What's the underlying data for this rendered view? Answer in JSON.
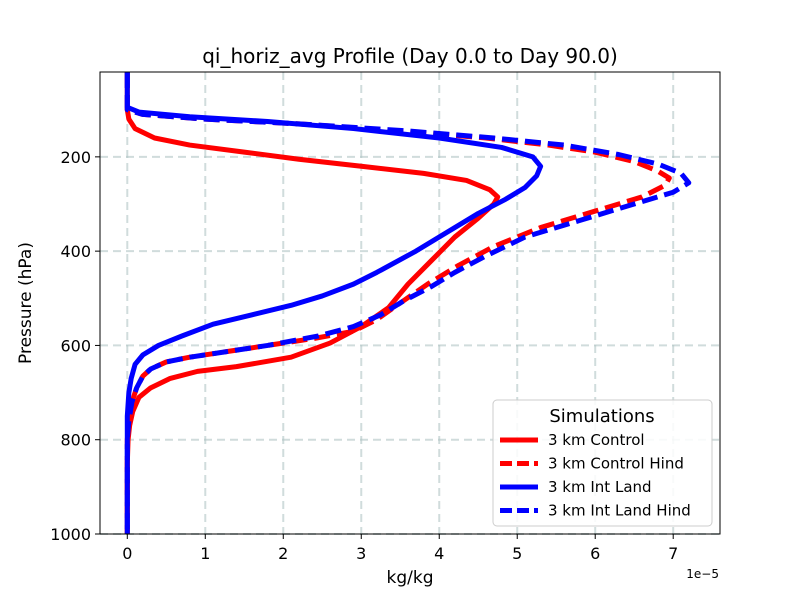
{
  "chart_data": {
    "type": "line",
    "title": "qi_horiz_avg Profile (Day 0.0 to Day 90.0)",
    "xlabel": "kg/kg",
    "ylabel": "Pressure (hPa)",
    "x_scale_label": "1e−5",
    "x_multiplier": 1e-05,
    "xlim": [
      -0.35,
      7.6
    ],
    "ylim": [
      1000,
      20
    ],
    "y_inverted": true,
    "x_ticks": [
      0,
      1,
      2,
      3,
      4,
      5,
      6,
      7
    ],
    "x_tick_labels": [
      "0",
      "1",
      "2",
      "3",
      "4",
      "5",
      "6",
      "7"
    ],
    "y_ticks": [
      200,
      400,
      600,
      800,
      1000
    ],
    "y_tick_labels": [
      "200",
      "400",
      "600",
      "800",
      "1000"
    ],
    "grid": true,
    "legend": {
      "title": "Simulations",
      "location": "lower right"
    },
    "series": [
      {
        "name": "3 km Control",
        "color": "#ff0000",
        "dash": "solid",
        "points": [
          [
            0,
            20
          ],
          [
            0,
            90
          ],
          [
            0,
            100
          ],
          [
            0.02,
            120
          ],
          [
            0.1,
            140
          ],
          [
            0.35,
            160
          ],
          [
            0.8,
            175
          ],
          [
            1.5,
            190
          ],
          [
            2.2,
            205
          ],
          [
            3.0,
            220
          ],
          [
            3.8,
            235
          ],
          [
            4.35,
            250
          ],
          [
            4.65,
            270
          ],
          [
            4.75,
            285
          ],
          [
            4.7,
            300
          ],
          [
            4.5,
            330
          ],
          [
            4.2,
            370
          ],
          [
            3.9,
            420
          ],
          [
            3.6,
            470
          ],
          [
            3.35,
            520
          ],
          [
            3.0,
            560
          ],
          [
            2.6,
            595
          ],
          [
            2.1,
            625
          ],
          [
            1.4,
            645
          ],
          [
            0.9,
            655
          ],
          [
            0.55,
            670
          ],
          [
            0.3,
            690
          ],
          [
            0.15,
            710
          ],
          [
            0.07,
            740
          ],
          [
            0.03,
            770
          ],
          [
            0.01,
            800
          ],
          [
            0,
            850
          ],
          [
            0,
            900
          ],
          [
            0,
            1000
          ]
        ]
      },
      {
        "name": "3 km Control Hind",
        "color": "#ff0000",
        "dash": "dashed",
        "points": [
          [
            0,
            20
          ],
          [
            0,
            90
          ],
          [
            0,
            100
          ],
          [
            0.2,
            110
          ],
          [
            1.0,
            120
          ],
          [
            2.2,
            130
          ],
          [
            3.5,
            145
          ],
          [
            4.6,
            160
          ],
          [
            5.4,
            175
          ],
          [
            6.0,
            190
          ],
          [
            6.5,
            210
          ],
          [
            6.8,
            230
          ],
          [
            6.95,
            245
          ],
          [
            6.9,
            260
          ],
          [
            6.6,
            285
          ],
          [
            6.0,
            315
          ],
          [
            5.3,
            350
          ],
          [
            4.7,
            390
          ],
          [
            4.25,
            430
          ],
          [
            3.85,
            470
          ],
          [
            3.5,
            510
          ],
          [
            3.2,
            545
          ],
          [
            2.9,
            570
          ],
          [
            2.4,
            585
          ],
          [
            1.8,
            600
          ],
          [
            1.2,
            615
          ],
          [
            0.8,
            625
          ],
          [
            0.5,
            635
          ],
          [
            0.3,
            650
          ],
          [
            0.2,
            665
          ],
          [
            0.12,
            690
          ],
          [
            0.06,
            720
          ],
          [
            0.02,
            760
          ],
          [
            0,
            800
          ],
          [
            0,
            900
          ],
          [
            0,
            1000
          ]
        ]
      },
      {
        "name": "3 km Int Land",
        "color": "#0000ff",
        "dash": "solid",
        "points": [
          [
            0,
            20
          ],
          [
            0,
            80
          ],
          [
            0,
            95
          ],
          [
            0.15,
            105
          ],
          [
            0.8,
            115
          ],
          [
            1.8,
            125
          ],
          [
            2.9,
            140
          ],
          [
            4.0,
            160
          ],
          [
            4.8,
            180
          ],
          [
            5.2,
            200
          ],
          [
            5.3,
            220
          ],
          [
            5.25,
            240
          ],
          [
            5.1,
            265
          ],
          [
            4.85,
            290
          ],
          [
            4.5,
            320
          ],
          [
            4.1,
            360
          ],
          [
            3.7,
            400
          ],
          [
            3.2,
            445
          ],
          [
            2.9,
            470
          ],
          [
            2.5,
            495
          ],
          [
            2.1,
            515
          ],
          [
            1.6,
            535
          ],
          [
            1.1,
            555
          ],
          [
            0.7,
            580
          ],
          [
            0.4,
            600
          ],
          [
            0.2,
            620
          ],
          [
            0.1,
            640
          ],
          [
            0.05,
            670
          ],
          [
            0.02,
            700
          ],
          [
            0,
            750
          ],
          [
            0,
            800
          ],
          [
            0,
            900
          ],
          [
            0,
            1000
          ]
        ]
      },
      {
        "name": "3 km Int Land Hind",
        "color": "#0000ff",
        "dash": "dashed",
        "points": [
          [
            0,
            20
          ],
          [
            0,
            90
          ],
          [
            0,
            100
          ],
          [
            0.2,
            110
          ],
          [
            1.0,
            120
          ],
          [
            2.2,
            130
          ],
          [
            3.6,
            145
          ],
          [
            4.7,
            160
          ],
          [
            5.6,
            175
          ],
          [
            6.3,
            195
          ],
          [
            6.8,
            215
          ],
          [
            7.1,
            235
          ],
          [
            7.2,
            255
          ],
          [
            7.0,
            275
          ],
          [
            6.5,
            300
          ],
          [
            5.8,
            335
          ],
          [
            5.1,
            370
          ],
          [
            4.6,
            410
          ],
          [
            4.2,
            445
          ],
          [
            3.9,
            475
          ],
          [
            3.55,
            505
          ],
          [
            3.25,
            535
          ],
          [
            2.9,
            560
          ],
          [
            2.45,
            580
          ],
          [
            1.8,
            600
          ],
          [
            1.2,
            615
          ],
          [
            0.8,
            625
          ],
          [
            0.5,
            635
          ],
          [
            0.3,
            650
          ],
          [
            0.2,
            665
          ],
          [
            0.12,
            690
          ],
          [
            0.06,
            720
          ],
          [
            0.02,
            760
          ],
          [
            0,
            800
          ],
          [
            0,
            900
          ],
          [
            0,
            1000
          ]
        ]
      }
    ]
  }
}
